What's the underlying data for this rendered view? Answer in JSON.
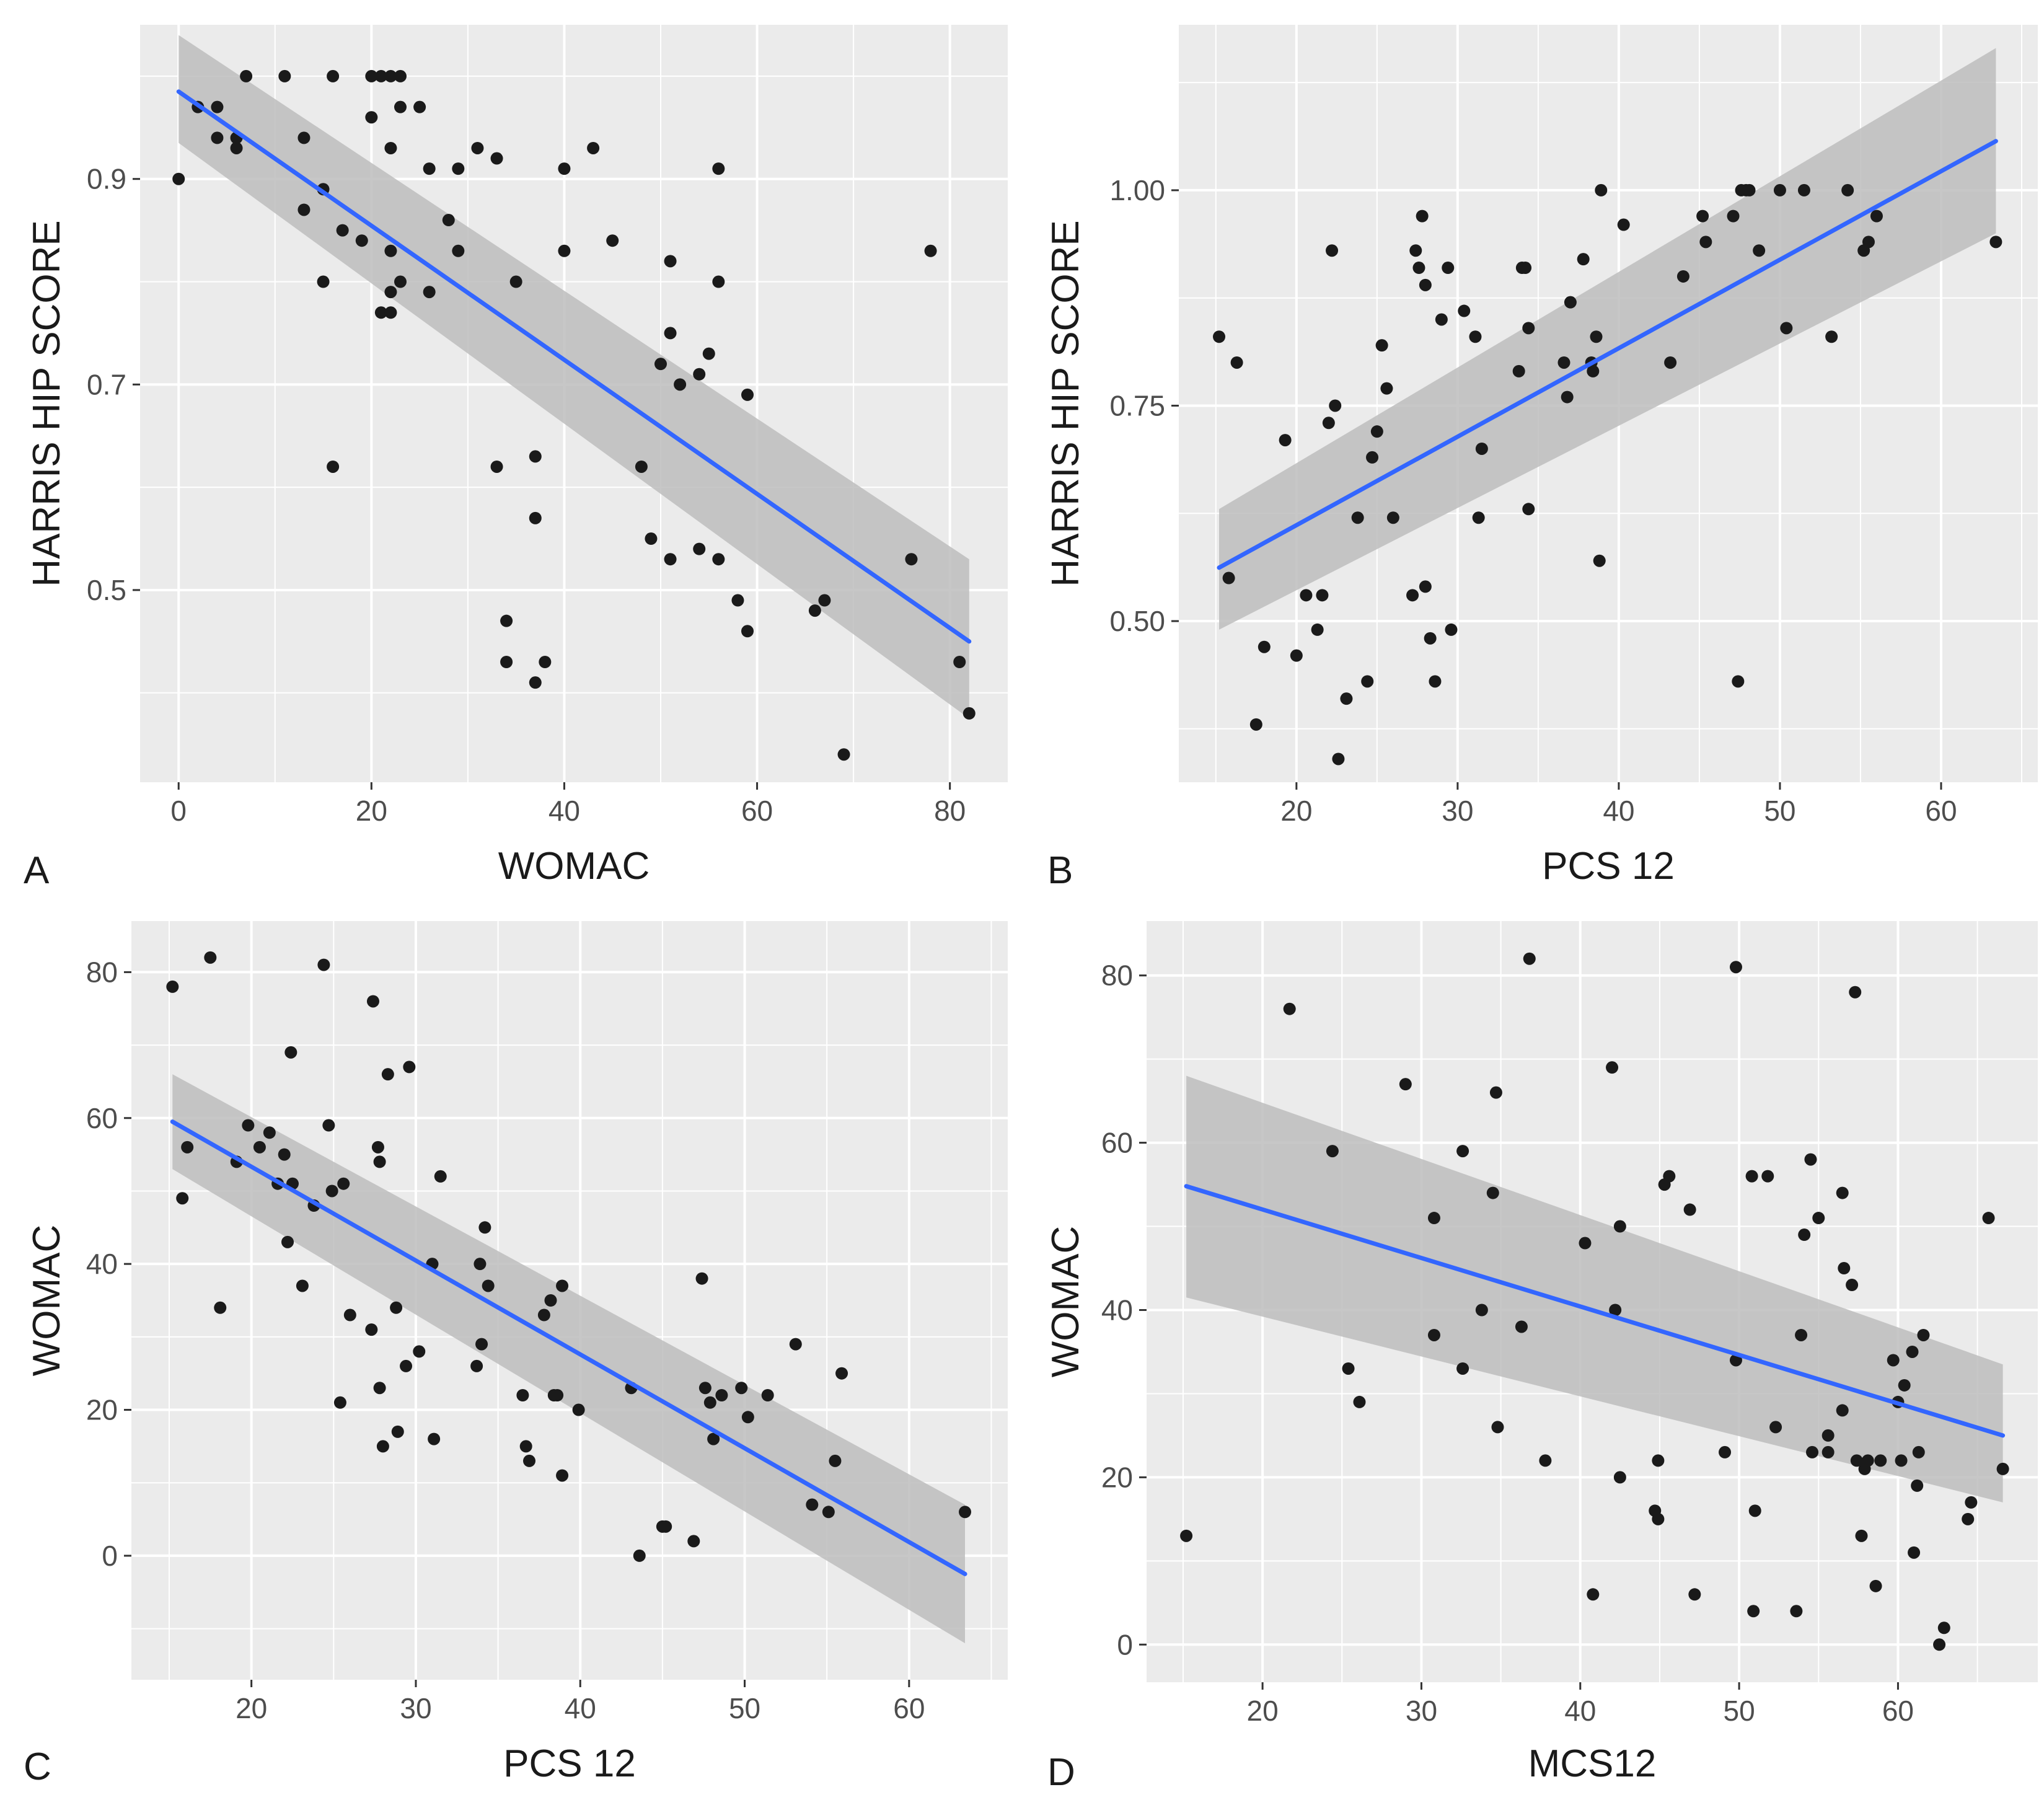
{
  "figure": {
    "title": ""
  },
  "colors": {
    "panel_bg": "#EBEBEB",
    "grid": "#FFFFFF",
    "point": "#1A1A1A",
    "fit_line": "#3366FF",
    "ribbon": "#BDBDBD",
    "tick": "#333333"
  },
  "chart_data": [
    {
      "id": "A",
      "type": "scatter",
      "panel_label": "A",
      "xlabel": "WOMAC",
      "ylabel": "HARRIS HIP SCORE",
      "xlim": [
        -4,
        86
      ],
      "ylim": [
        0.313,
        1.05
      ],
      "xticks": [
        0,
        20,
        40,
        60,
        80
      ],
      "xtick_labels": [
        "0",
        "20",
        "40",
        "60",
        "80"
      ],
      "yticks": [
        0.5,
        0.7,
        0.9
      ],
      "ytick_labels": [
        "0.5",
        "0.7",
        "0.9"
      ],
      "points": [
        [
          0,
          0.9
        ],
        [
          2,
          0.97
        ],
        [
          4,
          0.97
        ],
        [
          4,
          0.94
        ],
        [
          6,
          0.94
        ],
        [
          6,
          0.93
        ],
        [
          7,
          1.0
        ],
        [
          11,
          1.0
        ],
        [
          13,
          0.94
        ],
        [
          13,
          0.87
        ],
        [
          15,
          0.89
        ],
        [
          15,
          0.8
        ],
        [
          16,
          1.0
        ],
        [
          16,
          0.62
        ],
        [
          17,
          0.85
        ],
        [
          19,
          0.84
        ],
        [
          20,
          0.96
        ],
        [
          20,
          1.0
        ],
        [
          21,
          1.0
        ],
        [
          21,
          0.77
        ],
        [
          22,
          1.0
        ],
        [
          22,
          0.93
        ],
        [
          22,
          0.83
        ],
        [
          22,
          0.79
        ],
        [
          22,
          0.77
        ],
        [
          23,
          1.0
        ],
        [
          23,
          0.97
        ],
        [
          23,
          0.8
        ],
        [
          25,
          0.97
        ],
        [
          26,
          0.91
        ],
        [
          26,
          0.79
        ],
        [
          28,
          0.86
        ],
        [
          29,
          0.91
        ],
        [
          29,
          0.83
        ],
        [
          31,
          0.93
        ],
        [
          33,
          0.92
        ],
        [
          33,
          0.62
        ],
        [
          34,
          0.47
        ],
        [
          34,
          0.43
        ],
        [
          35,
          0.8
        ],
        [
          37,
          0.63
        ],
        [
          37,
          0.57
        ],
        [
          37,
          0.41
        ],
        [
          38,
          0.43
        ],
        [
          40,
          0.91
        ],
        [
          40,
          0.83
        ],
        [
          43,
          0.93
        ],
        [
          45,
          0.84
        ],
        [
          48,
          0.62
        ],
        [
          49,
          0.55
        ],
        [
          50,
          0.72
        ],
        [
          51,
          0.82
        ],
        [
          51,
          0.75
        ],
        [
          51,
          0.53
        ],
        [
          52,
          0.7
        ],
        [
          54,
          0.71
        ],
        [
          54,
          0.54
        ],
        [
          55,
          0.73
        ],
        [
          56,
          0.91
        ],
        [
          56,
          0.8
        ],
        [
          56,
          0.53
        ],
        [
          58,
          0.49
        ],
        [
          59,
          0.69
        ],
        [
          59,
          0.46
        ],
        [
          66,
          0.48
        ],
        [
          67,
          0.49
        ],
        [
          69,
          0.34
        ],
        [
          76,
          0.53
        ],
        [
          78,
          0.83
        ],
        [
          81,
          0.43
        ],
        [
          82,
          0.38
        ]
      ],
      "fit": {
        "x": [
          0,
          82
        ],
        "y": [
          0.985,
          0.45
        ],
        "ci_lower": [
          0.935,
          0.375
        ],
        "ci_upper": [
          1.04,
          0.53
        ]
      }
    },
    {
      "id": "B",
      "type": "scatter",
      "panel_label": "B",
      "xlabel": "PCS 12",
      "ylabel": "HARRIS HIP SCORE",
      "xlim": [
        12.7,
        66.0
      ],
      "ylim": [
        0.313,
        1.192
      ],
      "xticks": [
        20,
        30,
        40,
        50,
        60
      ],
      "xtick_labels": [
        "20",
        "30",
        "40",
        "50",
        "60"
      ],
      "yticks": [
        0.5,
        0.75,
        1.0
      ],
      "ytick_labels": [
        "0.50",
        "0.75",
        "1.00"
      ],
      "points": [
        [
          15.2,
          0.83
        ],
        [
          15.8,
          0.55
        ],
        [
          16.3,
          0.8
        ],
        [
          17.5,
          0.38
        ],
        [
          18.0,
          0.47
        ],
        [
          19.3,
          0.71
        ],
        [
          20.0,
          0.46
        ],
        [
          20.6,
          0.53
        ],
        [
          21.3,
          0.49
        ],
        [
          21.6,
          0.53
        ],
        [
          22.0,
          0.73
        ],
        [
          22.2,
          0.93
        ],
        [
          22.4,
          0.75
        ],
        [
          22.6,
          0.34
        ],
        [
          23.1,
          0.41
        ],
        [
          23.8,
          0.62
        ],
        [
          24.4,
          0.43
        ],
        [
          24.7,
          0.69
        ],
        [
          25.0,
          0.72
        ],
        [
          25.3,
          0.82
        ],
        [
          25.6,
          0.77
        ],
        [
          26.0,
          0.62
        ],
        [
          27.2,
          0.53
        ],
        [
          27.4,
          0.93
        ],
        [
          27.6,
          0.91
        ],
        [
          27.8,
          0.97
        ],
        [
          28.0,
          0.89
        ],
        [
          28.0,
          0.54
        ],
        [
          28.3,
          0.48
        ],
        [
          28.6,
          0.43
        ],
        [
          29.0,
          0.85
        ],
        [
          29.4,
          0.91
        ],
        [
          29.6,
          0.49
        ],
        [
          30.4,
          0.86
        ],
        [
          31.1,
          0.83
        ],
        [
          31.3,
          0.62
        ],
        [
          31.5,
          0.7
        ],
        [
          33.8,
          0.79
        ],
        [
          34.0,
          0.91
        ],
        [
          34.2,
          0.91
        ],
        [
          34.4,
          0.84
        ],
        [
          34.4,
          0.63
        ],
        [
          36.6,
          0.8
        ],
        [
          36.8,
          0.76
        ],
        [
          37.0,
          0.87
        ],
        [
          37.8,
          0.92
        ],
        [
          38.3,
          0.8
        ],
        [
          38.4,
          0.79
        ],
        [
          38.6,
          0.83
        ],
        [
          38.8,
          0.57
        ],
        [
          38.9,
          1.0
        ],
        [
          40.3,
          0.96
        ],
        [
          43.2,
          0.8
        ],
        [
          44.0,
          0.9
        ],
        [
          45.2,
          0.97
        ],
        [
          45.4,
          0.94
        ],
        [
          47.1,
          0.97
        ],
        [
          47.4,
          0.43
        ],
        [
          47.6,
          1.0
        ],
        [
          47.9,
          1.0
        ],
        [
          48.1,
          1.0
        ],
        [
          48.7,
          0.93
        ],
        [
          50.0,
          1.0
        ],
        [
          50.4,
          0.84
        ],
        [
          51.5,
          1.0
        ],
        [
          53.2,
          0.83
        ],
        [
          54.2,
          1.0
        ],
        [
          55.2,
          0.93
        ],
        [
          55.5,
          0.94
        ],
        [
          56.0,
          0.97
        ],
        [
          63.4,
          0.94
        ]
      ],
      "fit": {
        "x": [
          15.2,
          63.4
        ],
        "y": [
          0.562,
          1.057
        ],
        "ci_lower": [
          0.49,
          0.95
        ],
        "ci_upper": [
          0.63,
          1.165
        ]
      }
    },
    {
      "id": "C",
      "type": "scatter",
      "panel_label": "C",
      "xlabel": "PCS 12",
      "ylabel": "WOMAC",
      "xlim": [
        12.7,
        66.0
      ],
      "ylim": [
        -17,
        87
      ],
      "xticks": [
        20,
        30,
        40,
        50,
        60
      ],
      "xtick_labels": [
        "20",
        "30",
        "40",
        "50",
        "60"
      ],
      "yticks": [
        0,
        20,
        40,
        60,
        80
      ],
      "ytick_labels": [
        "0",
        "20",
        "40",
        "60",
        "80"
      ],
      "points": [
        [
          15.2,
          78
        ],
        [
          15.8,
          49
        ],
        [
          16.1,
          56
        ],
        [
          17.5,
          82
        ],
        [
          18.1,
          34
        ],
        [
          19.1,
          54
        ],
        [
          19.8,
          59
        ],
        [
          20.5,
          56
        ],
        [
          21.1,
          58
        ],
        [
          21.6,
          51
        ],
        [
          22.0,
          55
        ],
        [
          22.2,
          43
        ],
        [
          22.4,
          69
        ],
        [
          22.5,
          51
        ],
        [
          23.1,
          37
        ],
        [
          23.8,
          48
        ],
        [
          24.4,
          81
        ],
        [
          24.7,
          59
        ],
        [
          24.9,
          50
        ],
        [
          25.4,
          21
        ],
        [
          25.6,
          51
        ],
        [
          26.0,
          33
        ],
        [
          27.3,
          31
        ],
        [
          27.4,
          76
        ],
        [
          27.7,
          56
        ],
        [
          27.8,
          23
        ],
        [
          27.8,
          54
        ],
        [
          28.0,
          15
        ],
        [
          28.3,
          66
        ],
        [
          28.8,
          34
        ],
        [
          28.9,
          17
        ],
        [
          29.4,
          26
        ],
        [
          29.6,
          67
        ],
        [
          30.2,
          28
        ],
        [
          31.0,
          40
        ],
        [
          31.1,
          16
        ],
        [
          31.5,
          52
        ],
        [
          33.7,
          26
        ],
        [
          33.9,
          40
        ],
        [
          34.0,
          29
        ],
        [
          34.2,
          45
        ],
        [
          34.4,
          37
        ],
        [
          36.5,
          22
        ],
        [
          36.7,
          15
        ],
        [
          36.9,
          13
        ],
        [
          37.8,
          33
        ],
        [
          38.2,
          35
        ],
        [
          38.4,
          22
        ],
        [
          38.6,
          22
        ],
        [
          38.9,
          11
        ],
        [
          38.9,
          37
        ],
        [
          39.9,
          20
        ],
        [
          43.1,
          23
        ],
        [
          43.6,
          0
        ],
        [
          45.0,
          4
        ],
        [
          45.2,
          4
        ],
        [
          46.9,
          2
        ],
        [
          47.4,
          38
        ],
        [
          47.6,
          23
        ],
        [
          47.9,
          21
        ],
        [
          48.1,
          16
        ],
        [
          48.6,
          22
        ],
        [
          49.8,
          23
        ],
        [
          50.2,
          19
        ],
        [
          51.4,
          22
        ],
        [
          53.1,
          29
        ],
        [
          54.1,
          7
        ],
        [
          55.1,
          6
        ],
        [
          55.5,
          13
        ],
        [
          55.9,
          25
        ],
        [
          63.4,
          6
        ]
      ],
      "fit": {
        "x": [
          15.2,
          63.4
        ],
        "y": [
          59.5,
          -2.5
        ],
        "ci_lower": [
          53.0,
          -12.0
        ],
        "ci_upper": [
          66.0,
          7.0
        ]
      }
    },
    {
      "id": "D",
      "type": "scatter",
      "panel_label": "D",
      "xlabel": "MCS12",
      "ylabel": "WOMAC",
      "xlim": [
        12.7,
        68.8
      ],
      "ylim": [
        -4.5,
        86.5
      ],
      "xticks": [
        20,
        30,
        40,
        50,
        60
      ],
      "xtick_labels": [
        "20",
        "30",
        "40",
        "50",
        "60"
      ],
      "yticks": [
        0,
        20,
        40,
        60,
        80
      ],
      "ytick_labels": [
        "0",
        "20",
        "40",
        "60",
        "80"
      ],
      "points": [
        [
          15.2,
          13
        ],
        [
          21.7,
          76
        ],
        [
          24.4,
          59
        ],
        [
          25.4,
          33
        ],
        [
          26.1,
          29
        ],
        [
          29.0,
          67
        ],
        [
          30.8,
          51
        ],
        [
          30.8,
          37
        ],
        [
          32.6,
          33
        ],
        [
          32.6,
          59
        ],
        [
          33.8,
          40
        ],
        [
          34.5,
          54
        ],
        [
          34.7,
          66
        ],
        [
          34.8,
          26
        ],
        [
          36.3,
          38
        ],
        [
          36.8,
          82
        ],
        [
          37.8,
          22
        ],
        [
          40.3,
          48
        ],
        [
          40.8,
          6
        ],
        [
          42.0,
          69
        ],
        [
          42.2,
          40
        ],
        [
          42.5,
          50
        ],
        [
          42.5,
          20
        ],
        [
          44.7,
          16
        ],
        [
          44.9,
          15
        ],
        [
          44.9,
          22
        ],
        [
          45.3,
          55
        ],
        [
          45.6,
          56
        ],
        [
          46.9,
          52
        ],
        [
          47.2,
          6
        ],
        [
          49.1,
          23
        ],
        [
          49.8,
          81
        ],
        [
          49.8,
          34
        ],
        [
          50.8,
          56
        ],
        [
          50.9,
          4
        ],
        [
          51.0,
          16
        ],
        [
          51.8,
          56
        ],
        [
          52.3,
          26
        ],
        [
          53.6,
          4
        ],
        [
          53.9,
          37
        ],
        [
          54.1,
          49
        ],
        [
          54.5,
          58
        ],
        [
          54.6,
          23
        ],
        [
          55.0,
          51
        ],
        [
          55.6,
          25
        ],
        [
          55.6,
          23
        ],
        [
          56.5,
          28
        ],
        [
          56.5,
          54
        ],
        [
          56.6,
          45
        ],
        [
          57.1,
          43
        ],
        [
          57.3,
          78
        ],
        [
          57.4,
          22
        ],
        [
          57.7,
          13
        ],
        [
          57.9,
          21
        ],
        [
          58.1,
          22
        ],
        [
          58.6,
          7
        ],
        [
          58.9,
          22
        ],
        [
          59.7,
          34
        ],
        [
          60.0,
          29
        ],
        [
          60.2,
          22
        ],
        [
          60.4,
          31
        ],
        [
          60.9,
          35
        ],
        [
          61.0,
          11
        ],
        [
          61.2,
          19
        ],
        [
          61.3,
          23
        ],
        [
          61.6,
          37
        ],
        [
          62.6,
          0
        ],
        [
          62.9,
          2
        ],
        [
          64.4,
          15
        ],
        [
          64.6,
          17
        ],
        [
          65.7,
          51
        ],
        [
          66.6,
          21
        ]
      ],
      "fit": {
        "x": [
          15.2,
          66.6
        ],
        "y": [
          54.8,
          25.0
        ],
        "ci_lower": [
          41.5,
          17.0
        ],
        "ci_upper": [
          68.0,
          33.5
        ]
      }
    }
  ]
}
